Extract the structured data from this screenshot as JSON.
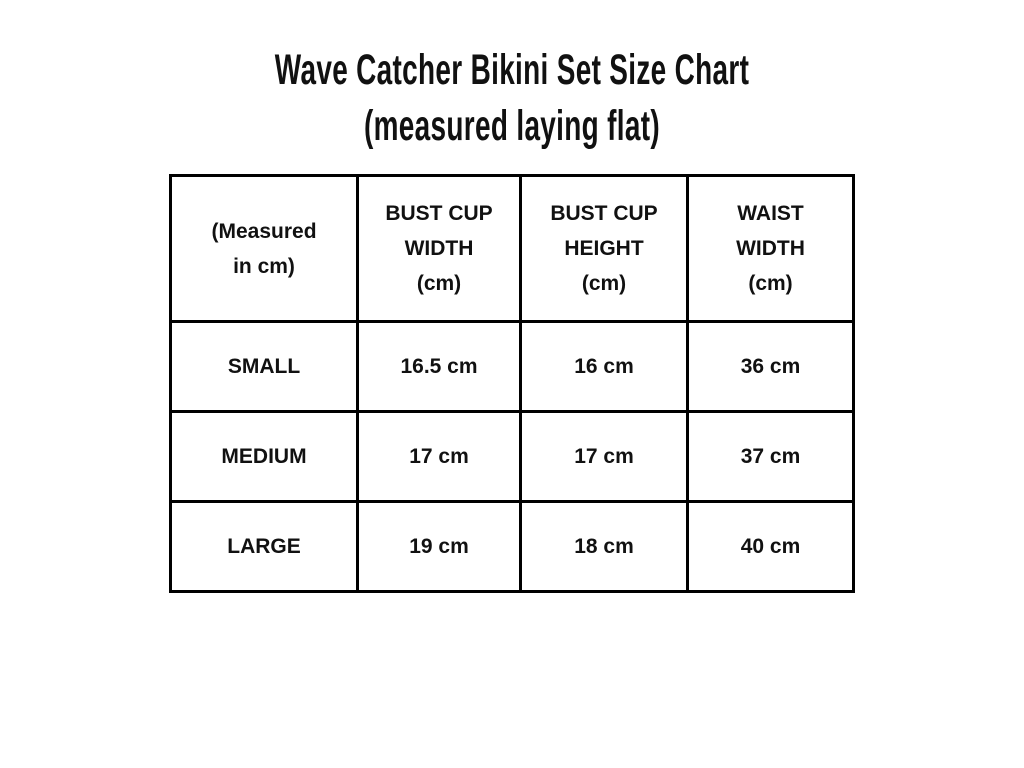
{
  "page": {
    "background_color": "#ffffff",
    "text_color": "#111111",
    "border_color": "#000000"
  },
  "title": {
    "line1": "Wave Catcher Bikini Set Size Chart",
    "line2": "(measured laying flat)"
  },
  "table": {
    "headers": [
      "(Measured\nin cm)",
      "BUST CUP\nWIDTH\n(cm)",
      "BUST CUP\nHEIGHT\n(cm)",
      "WAIST\nWIDTH\n(cm)"
    ],
    "rows": [
      {
        "size": "SMALL",
        "values": [
          "16.5 cm",
          "16 cm",
          "36 cm"
        ]
      },
      {
        "size": "MEDIUM",
        "values": [
          "17 cm",
          "17 cm",
          "37 cm"
        ]
      },
      {
        "size": "LARGE",
        "values": [
          "19 cm",
          "18 cm",
          "40 cm"
        ]
      }
    ]
  },
  "chart_data": {
    "type": "table",
    "title": "Wave Catcher Bikini Set Size Chart (measured laying flat)",
    "columns": [
      "(Measured in cm)",
      "BUST CUP WIDTH (cm)",
      "BUST CUP HEIGHT (cm)",
      "WAIST WIDTH (cm)"
    ],
    "rows": [
      [
        "SMALL",
        "16.5 cm",
        "16 cm",
        "36 cm"
      ],
      [
        "MEDIUM",
        "17 cm",
        "17 cm",
        "37 cm"
      ],
      [
        "LARGE",
        "19 cm",
        "18 cm",
        "40 cm"
      ]
    ],
    "series": [
      {
        "name": "BUST CUP WIDTH (cm)",
        "categories": [
          "SMALL",
          "MEDIUM",
          "LARGE"
        ],
        "values": [
          16.5,
          17,
          19
        ]
      },
      {
        "name": "BUST CUP HEIGHT (cm)",
        "categories": [
          "SMALL",
          "MEDIUM",
          "LARGE"
        ],
        "values": [
          16,
          17,
          18
        ]
      },
      {
        "name": "WAIST WIDTH (cm)",
        "categories": [
          "SMALL",
          "MEDIUM",
          "LARGE"
        ],
        "values": [
          36,
          37,
          40
        ]
      }
    ],
    "unit": "cm"
  }
}
